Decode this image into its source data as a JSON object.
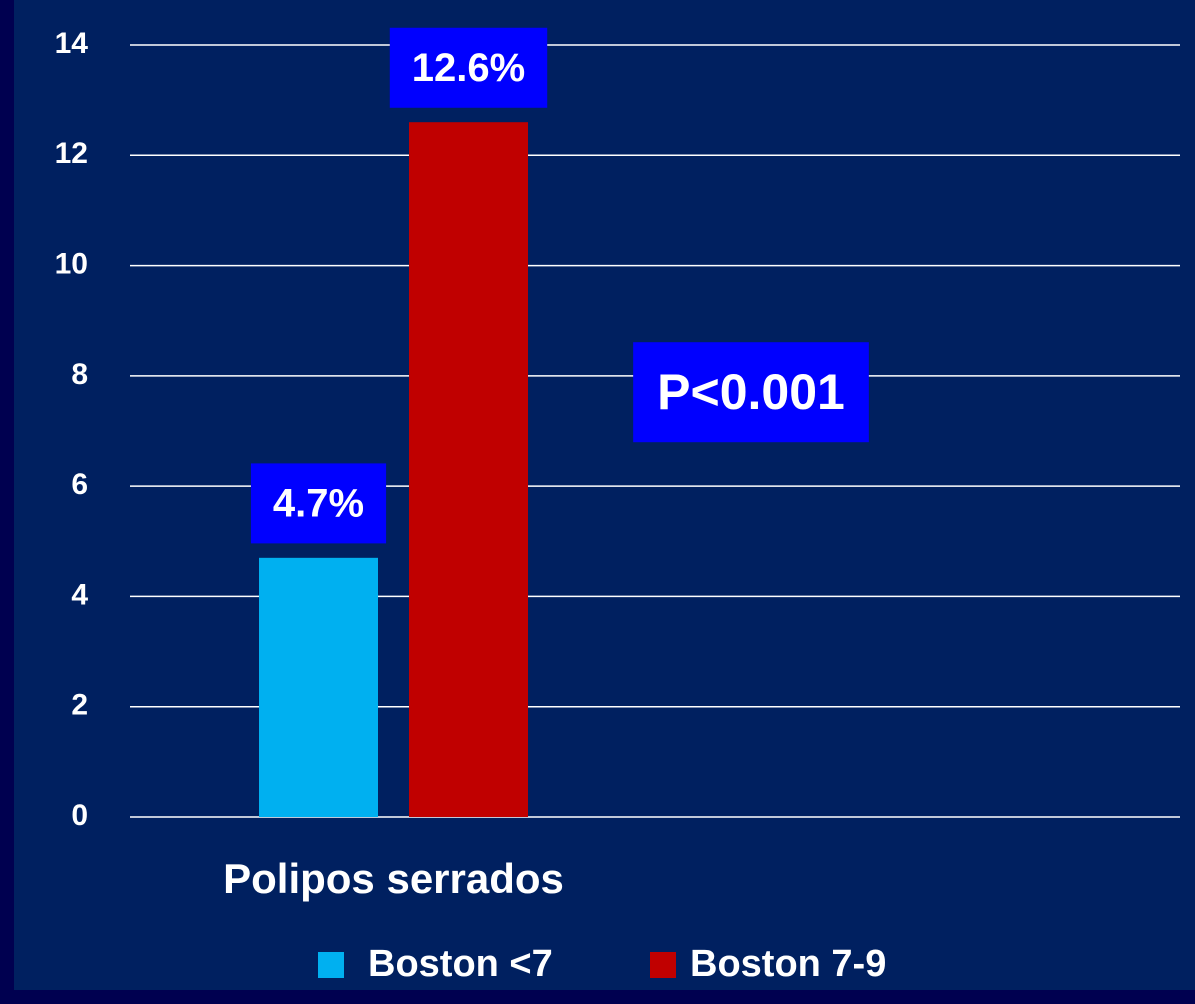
{
  "chart_data": {
    "type": "bar",
    "categories": [
      "Polipos serrados"
    ],
    "series": [
      {
        "name": "Boston <7",
        "color": "#00b0f0",
        "values": [
          4.7
        ],
        "value_labels": [
          "4.7%"
        ]
      },
      {
        "name": "Boston 7-9",
        "color": "#c00000",
        "values": [
          12.6
        ],
        "value_labels": [
          "12.6%"
        ]
      }
    ],
    "annotation": "P<0.001",
    "ylim": [
      0,
      14
    ],
    "yticks": [
      0,
      2,
      4,
      6,
      8,
      10,
      12,
      14
    ],
    "grid": true
  }
}
